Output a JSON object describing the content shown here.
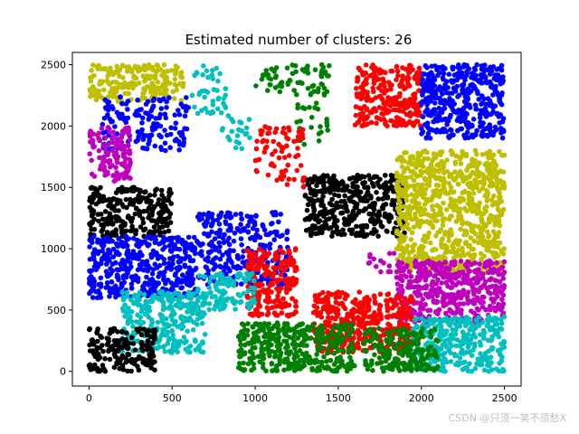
{
  "chart_data": {
    "type": "scatter",
    "title": "Estimated number of clusters: 26",
    "xlabel": "",
    "ylabel": "",
    "xlim": [
      -100,
      2600
    ],
    "ylim": [
      -120,
      2600
    ],
    "x_ticks": [
      0,
      500,
      1000,
      1500,
      2000,
      2500
    ],
    "y_ticks": [
      0,
      500,
      1000,
      1500,
      2000,
      2500
    ],
    "grid": false,
    "legend": "none",
    "palette": {
      "y": "#bfbf00",
      "b": "#0000ff",
      "c": "#00bfbf",
      "g": "#008000",
      "m": "#bf00bf",
      "r": "#ff0000",
      "k": "#000000"
    },
    "clusters": [
      {
        "color": "y",
        "x": [
          0,
          570
        ],
        "y": [
          2200,
          2500
        ],
        "density": 0.9
      },
      {
        "color": "c",
        "x": [
          620,
          830
        ],
        "y": [
          2100,
          2500
        ],
        "density": 0.35
      },
      {
        "color": "g",
        "x": [
          1000,
          1450
        ],
        "y": [
          2250,
          2500
        ],
        "density": 0.45
      },
      {
        "color": "b",
        "x": [
          80,
          600
        ],
        "y": [
          1800,
          2250
        ],
        "density": 0.45
      },
      {
        "color": "c",
        "x": [
          800,
          980
        ],
        "y": [
          1800,
          2100
        ],
        "density": 0.3
      },
      {
        "color": "g",
        "x": [
          1250,
          1450
        ],
        "y": [
          1850,
          2200
        ],
        "density": 0.25
      },
      {
        "color": "r",
        "x": [
          1600,
          2000
        ],
        "y": [
          2000,
          2500
        ],
        "density": 0.95
      },
      {
        "color": "b",
        "x": [
          2000,
          2500
        ],
        "y": [
          1900,
          2500
        ],
        "density": 0.95
      },
      {
        "color": "m",
        "x": [
          0,
          250
        ],
        "y": [
          1550,
          2000
        ],
        "density": 0.75
      },
      {
        "color": "r",
        "x": [
          1000,
          1300
        ],
        "y": [
          1500,
          2000
        ],
        "density": 0.35
      },
      {
        "color": "k",
        "x": [
          1300,
          1900
        ],
        "y": [
          1100,
          1600
        ],
        "density": 0.95
      },
      {
        "color": "y",
        "x": [
          1850,
          2500
        ],
        "y": [
          1200,
          1800
        ],
        "density": 0.9
      },
      {
        "color": "k",
        "x": [
          0,
          500
        ],
        "y": [
          1100,
          1500
        ],
        "density": 0.9
      },
      {
        "color": "b",
        "x": [
          0,
          650
        ],
        "y": [
          600,
          1100
        ],
        "density": 0.95
      },
      {
        "color": "b",
        "x": [
          650,
          1200
        ],
        "y": [
          700,
          1300
        ],
        "density": 0.6
      },
      {
        "color": "y",
        "x": [
          1850,
          2500
        ],
        "y": [
          800,
          1200
        ],
        "density": 0.85
      },
      {
        "color": "m",
        "x": [
          1650,
          1850
        ],
        "y": [
          800,
          1000
        ],
        "density": 0.25
      },
      {
        "color": "m",
        "x": [
          1850,
          2500
        ],
        "y": [
          400,
          900
        ],
        "density": 0.95
      },
      {
        "color": "r",
        "x": [
          950,
          1250
        ],
        "y": [
          450,
          1000
        ],
        "density": 0.9
      },
      {
        "color": "c",
        "x": [
          650,
          1000
        ],
        "y": [
          500,
          800
        ],
        "density": 0.75
      },
      {
        "color": "c",
        "x": [
          200,
          700
        ],
        "y": [
          150,
          650
        ],
        "density": 0.8
      },
      {
        "color": "r",
        "x": [
          1350,
          1950
        ],
        "y": [
          150,
          650
        ],
        "density": 0.95
      },
      {
        "color": "c",
        "x": [
          1950,
          2500
        ],
        "y": [
          0,
          450
        ],
        "density": 0.9
      },
      {
        "color": "g",
        "x": [
          900,
          1600
        ],
        "y": [
          0,
          400
        ],
        "density": 0.95
      },
      {
        "color": "g",
        "x": [
          1650,
          2100
        ],
        "y": [
          0,
          350
        ],
        "density": 0.9
      },
      {
        "color": "k",
        "x": [
          0,
          400
        ],
        "y": [
          0,
          350
        ],
        "density": 0.85
      }
    ]
  },
  "watermark": "CSDN @只须一笑不须愁X"
}
